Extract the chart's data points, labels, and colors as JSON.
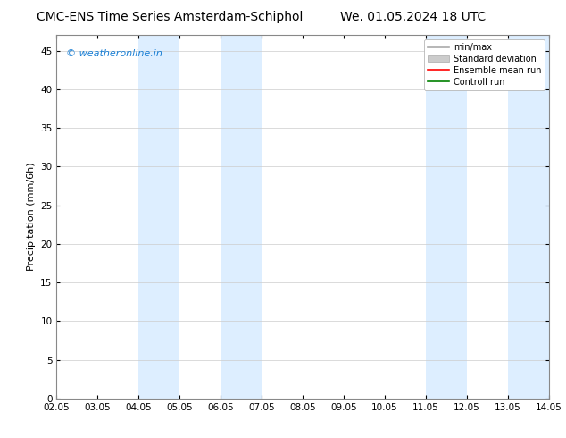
{
  "title_left": "CMC-ENS Time Series Amsterdam-Schiphol",
  "title_right": "We. 01.05.2024 18 UTC",
  "ylabel": "Precipitation (mm/6h)",
  "x_tick_labels": [
    "02.05",
    "03.05",
    "04.05",
    "05.05",
    "06.05",
    "07.05",
    "08.05",
    "09.05",
    "10.05",
    "11.05",
    "12.05",
    "13.05",
    "14.05"
  ],
  "x_tick_positions": [
    0,
    1,
    2,
    3,
    4,
    5,
    6,
    7,
    8,
    9,
    10,
    11,
    12
  ],
  "ylim": [
    0,
    47
  ],
  "yticks": [
    0,
    5,
    10,
    15,
    20,
    25,
    30,
    35,
    40,
    45
  ],
  "shaded_regions": [
    {
      "x_start": 2,
      "x_end": 3,
      "color": "#ddeeff"
    },
    {
      "x_start": 4,
      "x_end": 5,
      "color": "#ddeeff"
    },
    {
      "x_start": 9,
      "x_end": 10,
      "color": "#ddeeff"
    },
    {
      "x_start": 11,
      "x_end": 12,
      "color": "#ddeeff"
    }
  ],
  "watermark_text": "© weatheronline.in",
  "watermark_color": "#1a7fd4",
  "watermark_fontsize": 8,
  "legend_items": [
    {
      "label": "min/max",
      "color": "#aaaaaa",
      "lw": 1.2,
      "ls": "-",
      "type": "line"
    },
    {
      "label": "Standard deviation",
      "color": "#cccccc",
      "lw": 8,
      "ls": "-",
      "type": "patch"
    },
    {
      "label": "Ensemble mean run",
      "color": "red",
      "lw": 1.2,
      "ls": "-",
      "type": "line"
    },
    {
      "label": "Controll run",
      "color": "green",
      "lw": 1.2,
      "ls": "-",
      "type": "line"
    }
  ],
  "bg_color": "#ffffff",
  "plot_bg_color": "#ffffff",
  "grid_color": "#cccccc",
  "title_fontsize": 10,
  "axis_label_fontsize": 8,
  "tick_fontsize": 7.5,
  "legend_fontsize": 7
}
